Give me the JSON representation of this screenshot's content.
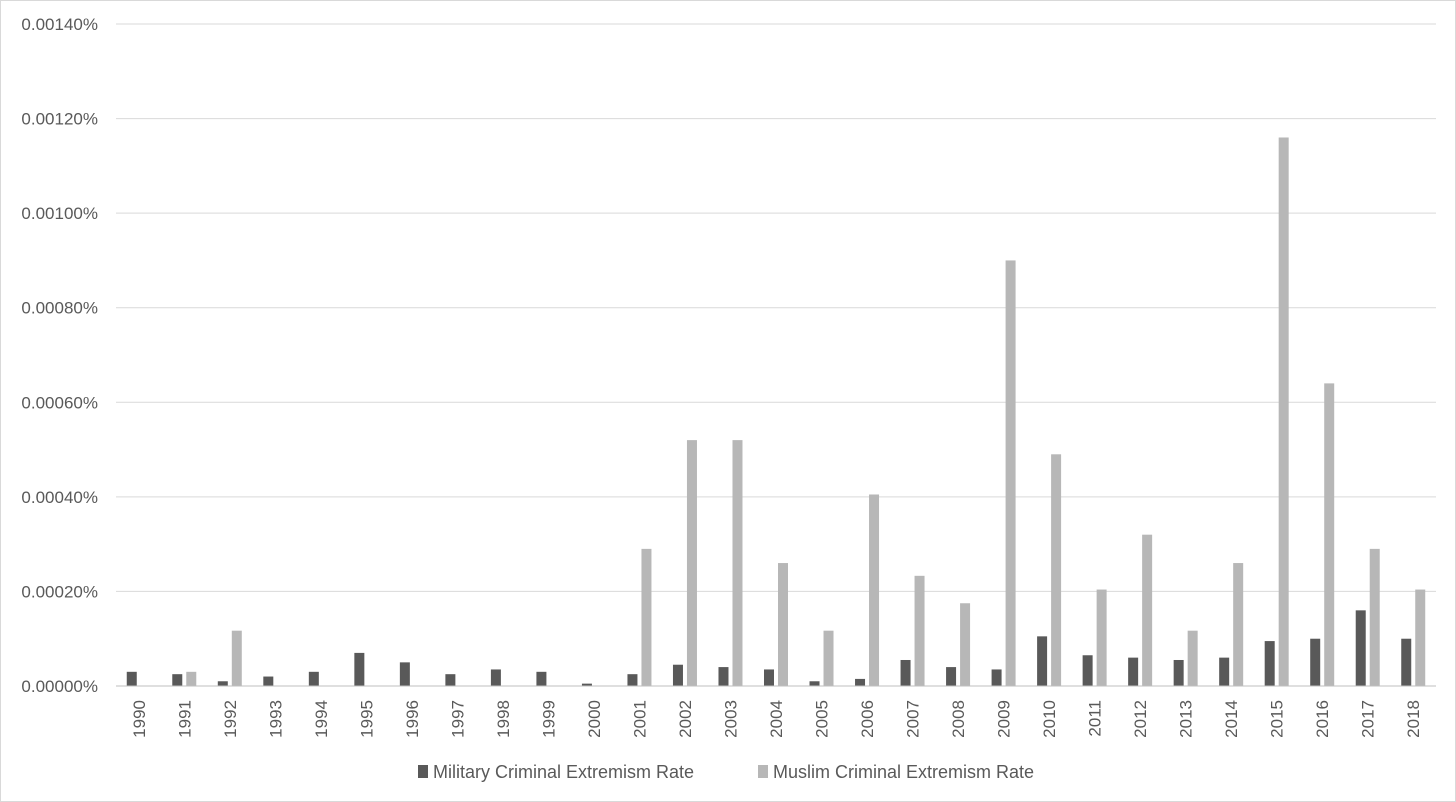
{
  "chart_data": {
    "type": "bar",
    "title": "",
    "xlabel": "",
    "ylabel": "",
    "categories": [
      "1990",
      "1991",
      "1992",
      "1993",
      "1994",
      "1995",
      "1996",
      "1997",
      "1998",
      "1999",
      "2000",
      "2001",
      "2002",
      "2003",
      "2004",
      "2005",
      "2006",
      "2007",
      "2008",
      "2009",
      "2010",
      "2011",
      "2012",
      "2013",
      "2014",
      "2015",
      "2016",
      "2017",
      "2018"
    ],
    "series": [
      {
        "name": "Military Criminal Extremism Rate",
        "color": "#595959",
        "values": [
          3e-07,
          2.5e-07,
          1e-07,
          2e-07,
          3e-07,
          7e-07,
          5e-07,
          2.5e-07,
          3.5e-07,
          3e-07,
          5e-08,
          2.5e-07,
          4.5e-07,
          4e-07,
          3.5e-07,
          1e-07,
          1.5e-07,
          5.5e-07,
          4e-07,
          3.5e-07,
          1.05e-06,
          6.5e-07,
          6e-07,
          5.5e-07,
          6e-07,
          9.5e-07,
          1e-06,
          1.6e-06,
          1e-06
        ]
      },
      {
        "name": "Muslim Criminal Extremism Rate",
        "color": "#b7b7b7",
        "values": [
          0,
          3e-07,
          1.17e-06,
          0,
          0,
          0,
          0,
          0,
          0,
          0,
          0,
          2.9e-06,
          5.2e-06,
          5.2e-06,
          2.6e-06,
          1.17e-06,
          4.05e-06,
          2.33e-06,
          1.75e-06,
          9e-06,
          4.9e-06,
          2.04e-06,
          3.2e-06,
          1.17e-06,
          2.6e-06,
          1.16e-05,
          6.4e-06,
          2.9e-06,
          2.04e-06
        ]
      }
    ],
    "ylim": [
      0,
      1.4e-05
    ],
    "yticks": [
      0,
      2e-06,
      4e-06,
      6e-06,
      8e-06,
      1e-05,
      1.2e-05,
      1.4e-05
    ],
    "ytick_labels": [
      "0.00000%",
      "0.00020%",
      "0.00040%",
      "0.00060%",
      "0.00080%",
      "0.00100%",
      "0.00120%",
      "0.00140%"
    ],
    "grid": true,
    "legend_position": "bottom"
  }
}
